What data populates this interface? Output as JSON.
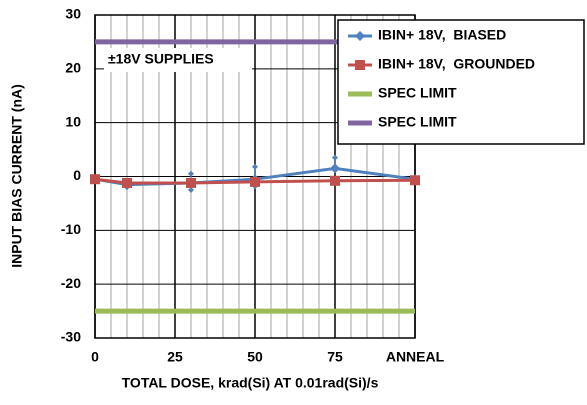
{
  "chart_data": {
    "type": "line",
    "xlabel": "TOTAL DOSE, krad(Si) AT 0.01rad(Si)/s",
    "ylabel": "INPUT BIAS CURRENT (nA)",
    "annotation": "±18V SUPPLIES",
    "xlim": [
      0,
      100
    ],
    "xticks": [
      0,
      25,
      50,
      75,
      {
        "value": 100,
        "label": "ANNEAL"
      }
    ],
    "x_minor_ticks": [
      5,
      10,
      15,
      20,
      30,
      35,
      40,
      45,
      55,
      60,
      65,
      70,
      80,
      85,
      90,
      95
    ],
    "ylim": [
      -30,
      30
    ],
    "yticks": [
      -30,
      -20,
      -10,
      0,
      10,
      20,
      30
    ],
    "grid": true,
    "legend": "upper right",
    "series": [
      {
        "name": "IBIN+ 18V,  BIASED",
        "color": "#4f81bd",
        "marker": "diamond",
        "x": [
          0,
          10,
          30,
          50,
          75,
          100
        ],
        "values": [
          -0.5,
          -1.5,
          -1.2,
          -0.5,
          1.5,
          -0.5
        ],
        "low": [
          -0.5,
          -2,
          -2.5,
          -1.8,
          1.5,
          -0.5
        ],
        "high": [
          -0.5,
          -1,
          0.5,
          1.8,
          3.5,
          -0.5
        ]
      },
      {
        "name": "IBIN+ 18V,  GROUNDED",
        "color": "#c0504d",
        "marker": "square",
        "x": [
          0,
          10,
          30,
          50,
          75,
          100
        ],
        "values": [
          -0.5,
          -1.2,
          -1.2,
          -1,
          -0.8,
          -0.7
        ]
      },
      {
        "name": "SPEC LIMIT",
        "color": "#9bbb59",
        "marker": "none",
        "x": [
          0,
          100
        ],
        "values": [
          -25,
          -25
        ]
      },
      {
        "name": "SPEC LIMIT",
        "color": "#8064a2",
        "marker": "none",
        "x": [
          0,
          100
        ],
        "values": [
          25,
          25
        ]
      }
    ]
  }
}
